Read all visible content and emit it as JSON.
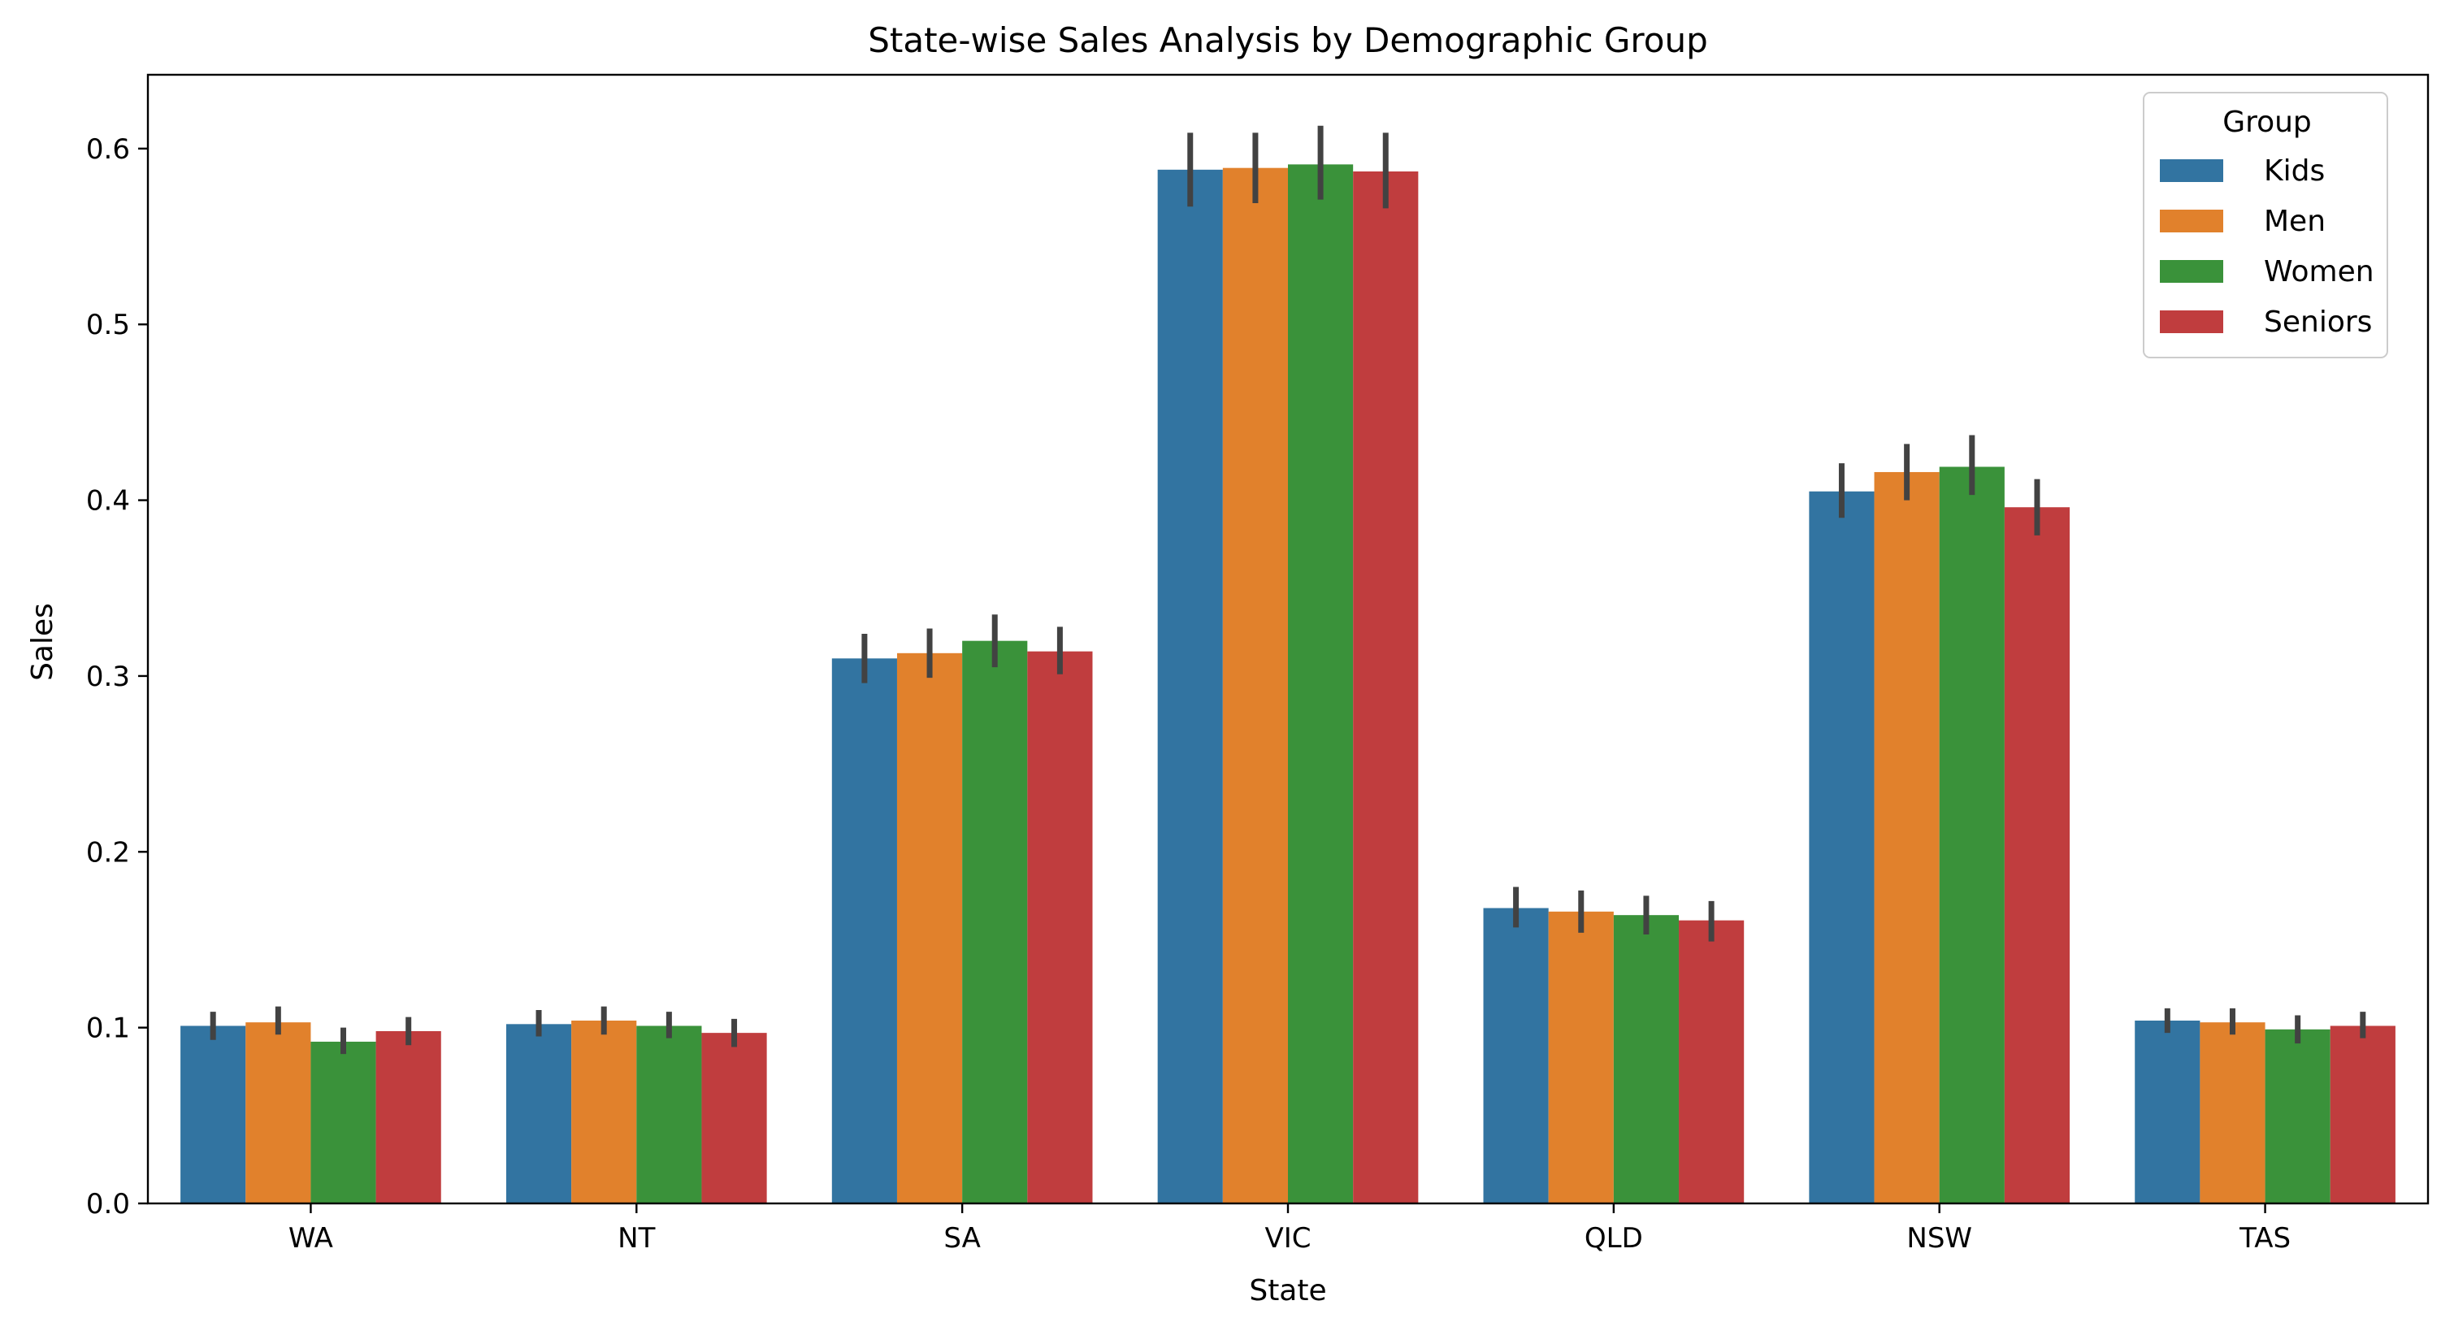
{
  "chart_data": {
    "type": "bar",
    "title": "State-wise Sales Analysis by Demographic Group",
    "xlabel": "State",
    "ylabel": "Sales",
    "ylim": [
      0,
      0.642
    ],
    "yticks": [
      0.0,
      0.1,
      0.2,
      0.3,
      0.4,
      0.5,
      0.6
    ],
    "ytick_labels": [
      "0.0",
      "0.1",
      "0.2",
      "0.3",
      "0.4",
      "0.5",
      "0.6"
    ],
    "categories": [
      "WA",
      "NT",
      "SA",
      "VIC",
      "QLD",
      "NSW",
      "TAS"
    ],
    "grid": false,
    "legend": {
      "title": "Group",
      "placement": "top-right"
    },
    "series": [
      {
        "name": "Kids",
        "color": "#3274a1",
        "values": [
          0.101,
          0.102,
          0.31,
          0.588,
          0.168,
          0.405,
          0.104
        ],
        "err_low": [
          0.093,
          0.095,
          0.296,
          0.567,
          0.157,
          0.39,
          0.097
        ],
        "err_high": [
          0.109,
          0.11,
          0.324,
          0.609,
          0.18,
          0.421,
          0.111
        ]
      },
      {
        "name": "Men",
        "color": "#e1812c",
        "values": [
          0.103,
          0.104,
          0.313,
          0.589,
          0.166,
          0.416,
          0.103
        ],
        "err_low": [
          0.096,
          0.096,
          0.299,
          0.569,
          0.154,
          0.4,
          0.096
        ],
        "err_high": [
          0.112,
          0.112,
          0.327,
          0.609,
          0.178,
          0.432,
          0.111
        ]
      },
      {
        "name": "Women",
        "color": "#3a923a",
        "values": [
          0.092,
          0.101,
          0.32,
          0.591,
          0.164,
          0.419,
          0.099
        ],
        "err_low": [
          0.085,
          0.094,
          0.305,
          0.571,
          0.153,
          0.403,
          0.091
        ],
        "err_high": [
          0.1,
          0.109,
          0.335,
          0.613,
          0.175,
          0.437,
          0.107
        ]
      },
      {
        "name": "Seniors",
        "color": "#c03d3e",
        "values": [
          0.098,
          0.097,
          0.314,
          0.587,
          0.161,
          0.396,
          0.101
        ],
        "err_low": [
          0.09,
          0.089,
          0.301,
          0.566,
          0.149,
          0.38,
          0.094
        ],
        "err_high": [
          0.106,
          0.105,
          0.328,
          0.609,
          0.172,
          0.412,
          0.109
        ]
      }
    ]
  }
}
